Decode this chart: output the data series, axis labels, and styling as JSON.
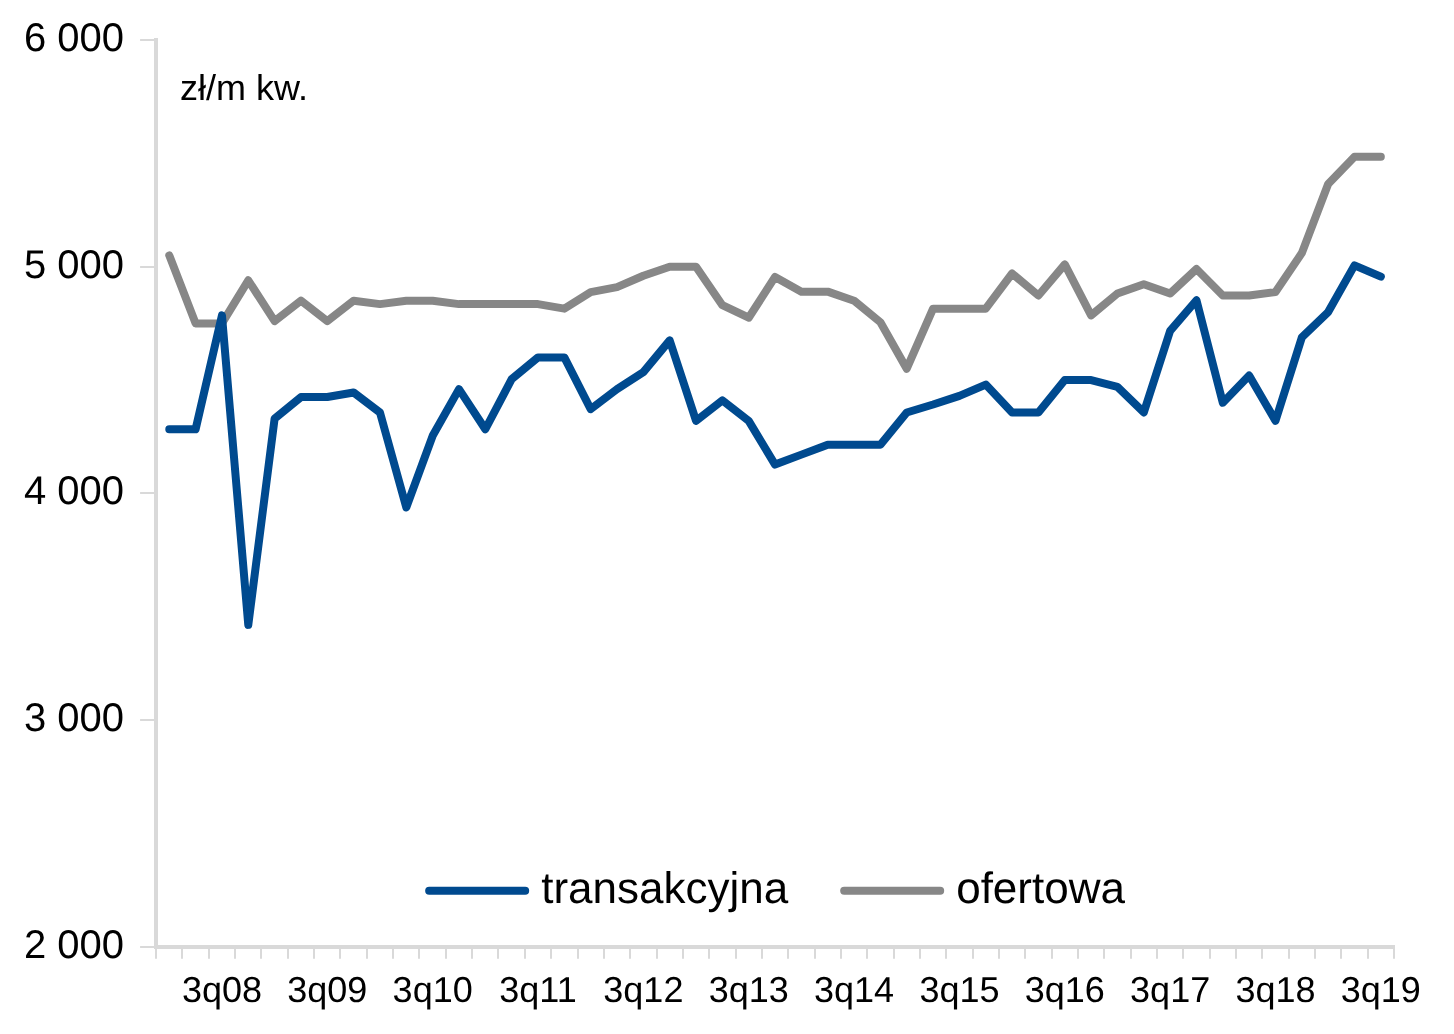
{
  "chart_data": {
    "type": "line",
    "ylabel": "zł/m kw.",
    "categories": [
      null,
      null,
      "3q08",
      null,
      null,
      null,
      "3q09",
      null,
      null,
      null,
      "3q10",
      null,
      null,
      null,
      "3q11",
      null,
      null,
      null,
      "3q12",
      null,
      null,
      null,
      "3q13",
      null,
      null,
      null,
      "3q14",
      null,
      null,
      null,
      "3q15",
      null,
      null,
      null,
      "3q16",
      null,
      null,
      null,
      "3q17",
      null,
      null,
      null,
      "3q18",
      null,
      null,
      null,
      "3q19"
    ],
    "series": [
      {
        "name": "transakcyjna",
        "color": "#004a8f",
        "values": [
          4283,
          4283,
          4785,
          3420,
          4330,
          4425,
          4425,
          4445,
          4357,
          3938,
          4254,
          4460,
          4283,
          4504,
          4600,
          4600,
          4372,
          4460,
          4535,
          4675,
          4320,
          4410,
          4320,
          4127,
          4171,
          4215,
          4215,
          4215,
          4357,
          4392,
          4430,
          4480,
          4357,
          4357,
          4500,
          4500,
          4470,
          4357,
          4717,
          4852,
          4400,
          4520,
          4320,
          4688,
          4800,
          5006,
          4956
        ]
      },
      {
        "name": "ofertowa",
        "color": "#878787",
        "values": [
          5050,
          4750,
          4750,
          4940,
          4760,
          4850,
          4760,
          4850,
          4835,
          4850,
          4850,
          4835,
          4835,
          4835,
          4835,
          4815,
          4888,
          4910,
          4960,
          5000,
          5000,
          4830,
          4775,
          4955,
          4890,
          4890,
          4850,
          4755,
          4550,
          4815,
          4815,
          4815,
          4970,
          4873,
          5010,
          4785,
          4882,
          4923,
          4882,
          4990,
          4873,
          4873,
          4888,
          5060,
          5365,
          5485,
          5485
        ]
      }
    ],
    "ylim": [
      2000,
      6000
    ],
    "yticks": [
      {
        "value": 2000,
        "label": "2 000"
      },
      {
        "value": 3000,
        "label": "3 000"
      },
      {
        "value": 4000,
        "label": "4 000"
      },
      {
        "value": 5000,
        "label": "5 000"
      },
      {
        "value": 6000,
        "label": "6 000"
      }
    ],
    "grid": false,
    "legend": "bottom",
    "marker": "none",
    "line_style": "solid"
  }
}
